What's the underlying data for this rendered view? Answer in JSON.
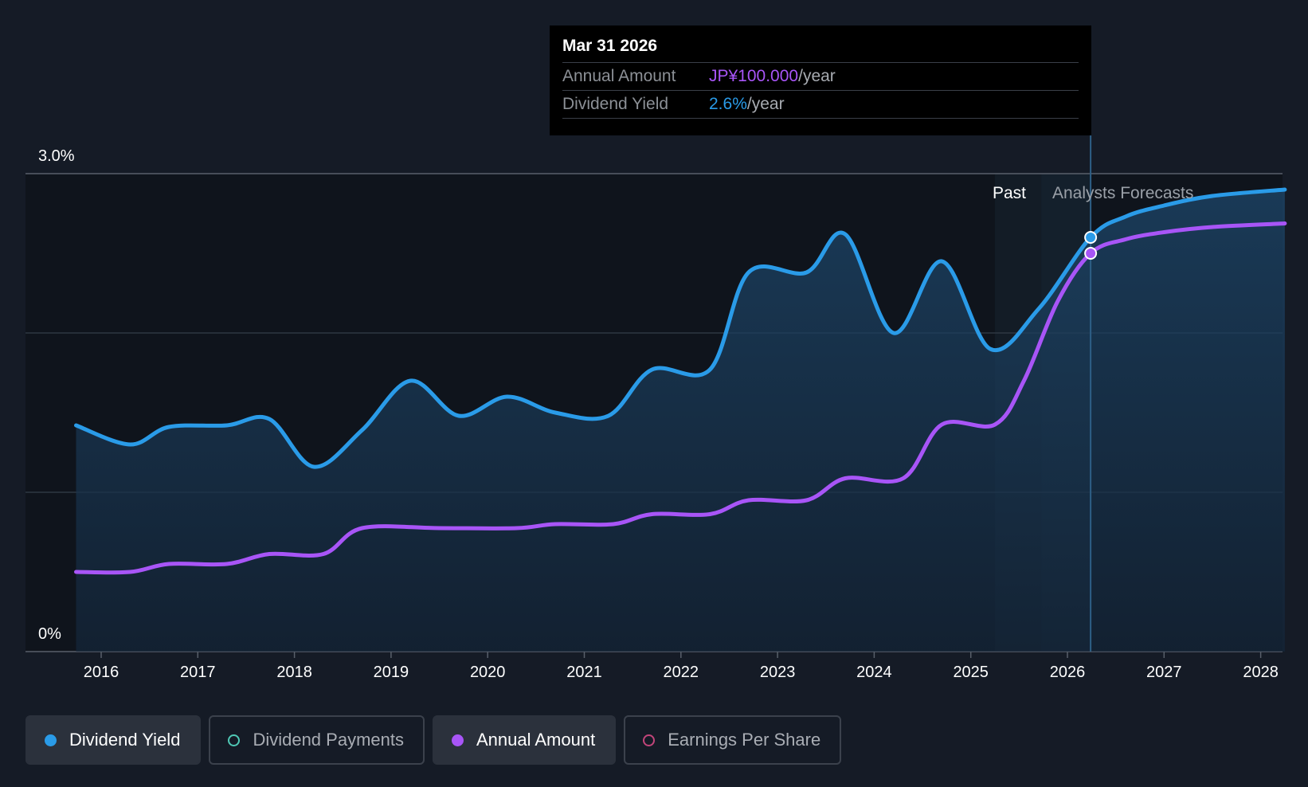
{
  "chart_data": {
    "type": "line",
    "title": "",
    "xlabel": "",
    "ylabel": "",
    "ylim": [
      0,
      3.0
    ],
    "y_axis_labels": [
      "3.0%",
      "0%"
    ],
    "x_ticks": [
      "2016",
      "2017",
      "2018",
      "2019",
      "2020",
      "2021",
      "2022",
      "2023",
      "2024",
      "2025",
      "2026",
      "2027",
      "2028"
    ],
    "regions": {
      "past_label": "Past",
      "forecast_label": "Analysts Forecasts"
    },
    "series": [
      {
        "name": "Dividend Yield",
        "color": "#2a9be8",
        "unit": "%",
        "points": [
          [
            2015.74,
            1.42
          ],
          [
            2016.3,
            1.3
          ],
          [
            2016.7,
            1.41
          ],
          [
            2017.3,
            1.42
          ],
          [
            2017.74,
            1.46
          ],
          [
            2018.2,
            1.16
          ],
          [
            2018.7,
            1.39
          ],
          [
            2019.2,
            1.7
          ],
          [
            2019.7,
            1.48
          ],
          [
            2020.2,
            1.6
          ],
          [
            2020.7,
            1.5
          ],
          [
            2021.25,
            1.48
          ],
          [
            2021.7,
            1.77
          ],
          [
            2022.3,
            1.77
          ],
          [
            2022.7,
            2.38
          ],
          [
            2023.3,
            2.38
          ],
          [
            2023.7,
            2.62
          ],
          [
            2024.2,
            2.0
          ],
          [
            2024.7,
            2.45
          ],
          [
            2025.2,
            1.9
          ],
          [
            2025.7,
            2.15
          ],
          [
            2026.24,
            2.6
          ],
          [
            2026.6,
            2.73
          ],
          [
            2027.0,
            2.8
          ],
          [
            2027.5,
            2.86
          ],
          [
            2028.25,
            2.9
          ]
        ]
      },
      {
        "name": "Annual Amount",
        "color": "#a855f7",
        "unit": "JP¥/year",
        "points": [
          [
            2015.74,
            20.0
          ],
          [
            2016.3,
            20.0
          ],
          [
            2016.7,
            22.0
          ],
          [
            2017.3,
            22.0
          ],
          [
            2017.74,
            24.5
          ],
          [
            2018.3,
            24.5
          ],
          [
            2018.7,
            31.0
          ],
          [
            2019.5,
            31.0
          ],
          [
            2020.3,
            31.0
          ],
          [
            2020.7,
            32.0
          ],
          [
            2021.3,
            32.0
          ],
          [
            2021.7,
            34.5
          ],
          [
            2022.3,
            34.5
          ],
          [
            2022.7,
            38.0
          ],
          [
            2023.3,
            38.0
          ],
          [
            2023.7,
            43.5
          ],
          [
            2024.3,
            43.5
          ],
          [
            2024.7,
            57.0
          ],
          [
            2025.25,
            57.0
          ],
          [
            2025.55,
            68.0
          ],
          [
            2025.9,
            88.0
          ],
          [
            2026.24,
            100.0
          ],
          [
            2026.6,
            103.5
          ],
          [
            2027.0,
            105.3
          ],
          [
            2027.5,
            106.6
          ],
          [
            2028.25,
            107.5
          ]
        ]
      }
    ],
    "highlight": {
      "date": "Mar 31 2026",
      "x": 2026.24,
      "annual_amount": 100.0,
      "dividend_yield": 2.6
    }
  },
  "tooltip": {
    "date": "Mar 31 2026",
    "annual_amount_label": "Annual Amount",
    "annual_amount_value": "JP¥100.000",
    "annual_amount_unit": "/year",
    "dividend_yield_label": "Dividend Yield",
    "dividend_yield_value": "2.6%",
    "dividend_yield_unit": "/year"
  },
  "legend": [
    {
      "label": "Dividend Yield",
      "color": "#2a9be8",
      "active": true
    },
    {
      "label": "Dividend Payments",
      "color": "#4fc8b5",
      "active": false
    },
    {
      "label": "Annual Amount",
      "color": "#a855f7",
      "active": true
    },
    {
      "label": "Earnings Per Share",
      "color": "#c2457a",
      "active": false
    }
  ],
  "colors": {
    "background": "#151b26",
    "plot_background": "#0f141c",
    "grid": "#3a424e"
  }
}
